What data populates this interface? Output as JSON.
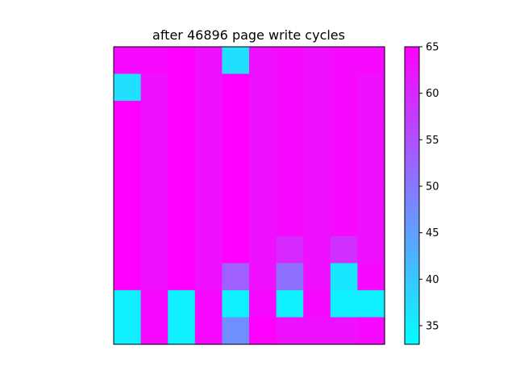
{
  "chart_data": {
    "type": "heatmap",
    "title": "after 46896 page write cycles",
    "xlabel": "",
    "ylabel": "",
    "rows": 11,
    "cols": 10,
    "values": [
      [
        64,
        64,
        65,
        63,
        37,
        63,
        64,
        63,
        64,
        64
      ],
      [
        37,
        63,
        65,
        63,
        65,
        63,
        64,
        63,
        64,
        63
      ],
      [
        65,
        63,
        65,
        63,
        65,
        63,
        64,
        63,
        64,
        63
      ],
      [
        65,
        63,
        65,
        63,
        65,
        63,
        64,
        63,
        64,
        63
      ],
      [
        65,
        63,
        65,
        63,
        65,
        63,
        64,
        63,
        64,
        63
      ],
      [
        65,
        63,
        65,
        63,
        65,
        63,
        64,
        63,
        64,
        63
      ],
      [
        65,
        63,
        65,
        63,
        65,
        63,
        64,
        63,
        64,
        63
      ],
      [
        65,
        63,
        65,
        63,
        65,
        63,
        60,
        63,
        59,
        63
      ],
      [
        65,
        63,
        65,
        63,
        53,
        63,
        51,
        63,
        36,
        64
      ],
      [
        35,
        64,
        35,
        64,
        35,
        64,
        35,
        64,
        35,
        35
      ],
      [
        35,
        64,
        35,
        64,
        47,
        65,
        63,
        63,
        63,
        64
      ]
    ],
    "colormap": "cool",
    "colormap_low": "#00ffff",
    "colormap_high": "#ff00ff",
    "vmin": 33,
    "vmax": 65,
    "colorbar_ticks": [
      "35",
      "40",
      "45",
      "50",
      "55",
      "60",
      "65"
    ],
    "colorbar_tick_values": [
      35,
      40,
      45,
      50,
      55,
      60,
      65
    ],
    "grid": false,
    "colorbar_position": "right"
  }
}
